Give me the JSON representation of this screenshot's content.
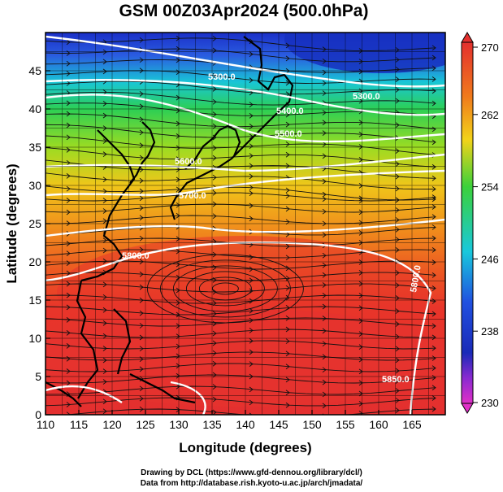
{
  "title": "GSM 00Z03Apr2024 (500.0hPa)",
  "map": {
    "xlabel": "Longitude (degrees)",
    "ylabel": "Latitude  (degrees)",
    "lon_range": [
      110,
      170
    ],
    "lat_range": [
      0,
      50
    ],
    "x_ticks": [
      "110",
      "115",
      "120",
      "125",
      "130",
      "135",
      "140",
      "145",
      "150",
      "155",
      "160",
      "165"
    ],
    "y_ticks": [
      "0",
      "5",
      "10",
      "15",
      "20",
      "25",
      "30",
      "35",
      "40",
      "45"
    ],
    "contour_labels": [
      "5300.0",
      "5300.0",
      "5400.0",
      "5500.0",
      "5600.0",
      "5700.0",
      "5800.0",
      "5800.0",
      "5850.0"
    ]
  },
  "colorbar": {
    "ticks": [
      "270",
      "262",
      "254",
      "246",
      "238",
      "230"
    ],
    "min": 230,
    "max": 270
  },
  "credits": {
    "line1": "Drawing by DCL (https://www.gfd-dennou.org/library/dcl/)",
    "line2": "Data from http://database.rish.kyoto-u.ac.jp/arch/jmadata/"
  },
  "colors": {
    "warm": "#e8352a",
    "mid": "#35c41f",
    "cold": "#1133cc",
    "contour": "#ffffff"
  }
}
